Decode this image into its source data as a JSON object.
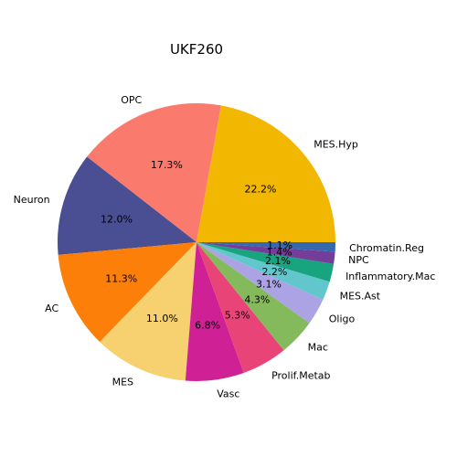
{
  "chart_data": {
    "type": "pie",
    "title": "UKF260",
    "slices": [
      {
        "label": "MES.Hyp",
        "value": 22.2,
        "pct_label": "22.2%",
        "color": "#f2b701"
      },
      {
        "label": "OPC",
        "value": 17.3,
        "pct_label": "17.3%",
        "color": "#fa7b6e"
      },
      {
        "label": "Neuron",
        "value": 12.0,
        "pct_label": "12.0%",
        "color": "#4a4e93"
      },
      {
        "label": "AC",
        "value": 11.3,
        "pct_label": "11.3%",
        "color": "#fb7f09"
      },
      {
        "label": "MES",
        "value": 11.0,
        "pct_label": "11.0%",
        "color": "#f7d06f"
      },
      {
        "label": "Vasc",
        "value": 6.8,
        "pct_label": "6.8%",
        "color": "#d02095"
      },
      {
        "label": "Prolif.Metab",
        "value": 5.3,
        "pct_label": "5.3%",
        "color": "#e84478"
      },
      {
        "label": "Mac",
        "value": 4.3,
        "pct_label": "4.3%",
        "color": "#84ba5b"
      },
      {
        "label": "Oligo",
        "value": 3.1,
        "pct_label": "3.1%",
        "color": "#aba3e4"
      },
      {
        "label": "MES.Ast",
        "value": 2.2,
        "pct_label": "2.2%",
        "color": "#62c7cd"
      },
      {
        "label": "Inflammatory.Mac",
        "value": 2.1,
        "pct_label": "2.1%",
        "color": "#17a47e"
      },
      {
        "label": "NPC",
        "value": 1.4,
        "pct_label": "1.4%",
        "color": "#753d9a"
      },
      {
        "label": "Chromatin.Reg",
        "value": 1.1,
        "pct_label": "1.1%",
        "color": "#3469ad"
      }
    ],
    "start_angle_deg": 0,
    "direction": "counterclockwise",
    "legend": "none"
  }
}
